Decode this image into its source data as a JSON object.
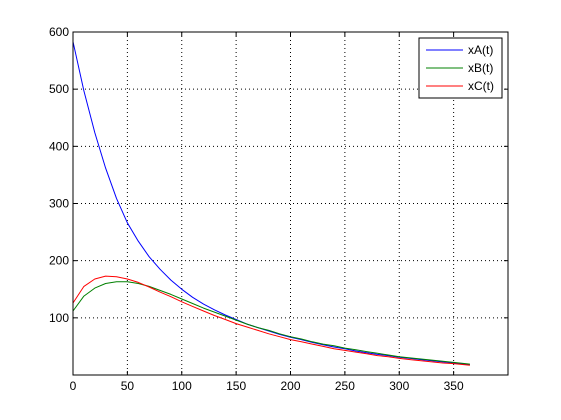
{
  "chart_data": {
    "type": "line",
    "title": "",
    "xlabel": "",
    "ylabel": "",
    "xlim": [
      0,
      400
    ],
    "ylim": [
      0,
      600
    ],
    "xticks": [
      0,
      50,
      100,
      150,
      200,
      250,
      300,
      350
    ],
    "yticks": [
      100,
      200,
      300,
      400,
      500,
      600
    ],
    "grid": true,
    "legend_position": "top-right",
    "series": [
      {
        "name": "xA(t)",
        "color": "#0000ff",
        "x": [
          0,
          10,
          20,
          30,
          40,
          50,
          60,
          70,
          80,
          90,
          100,
          110,
          120,
          130,
          140,
          150,
          160,
          170,
          180,
          190,
          200,
          210,
          220,
          230,
          240,
          250,
          260,
          270,
          280,
          290,
          300,
          310,
          320,
          330,
          340,
          350,
          365
        ],
        "y": [
          583,
          497,
          424,
          362,
          309,
          266,
          234,
          207,
          185,
          166,
          150,
          136,
          124,
          114,
          105,
          97,
          89,
          83,
          77,
          71,
          66,
          62,
          57,
          53,
          49,
          46,
          42,
          39,
          36,
          34,
          31,
          29,
          27,
          25,
          23,
          21,
          18
        ]
      },
      {
        "name": "xB(t)",
        "color": "#008000",
        "x": [
          0,
          10,
          20,
          30,
          40,
          50,
          60,
          70,
          80,
          90,
          100,
          110,
          120,
          130,
          140,
          150,
          160,
          170,
          180,
          190,
          200,
          210,
          220,
          230,
          240,
          250,
          260,
          270,
          280,
          290,
          300,
          310,
          320,
          330,
          340,
          350,
          365
        ],
        "y": [
          112,
          138,
          152,
          160,
          163,
          163,
          160,
          155,
          148,
          141,
          133,
          125,
          117,
          110,
          103,
          96,
          89,
          83,
          78,
          72,
          67,
          63,
          58,
          54,
          51,
          47,
          44,
          41,
          38,
          35,
          32,
          30,
          28,
          26,
          24,
          22,
          19
        ]
      },
      {
        "name": "xC(t)",
        "color": "#ff0000",
        "x": [
          0,
          10,
          20,
          30,
          40,
          50,
          60,
          70,
          80,
          90,
          100,
          110,
          120,
          130,
          140,
          150,
          160,
          170,
          180,
          190,
          200,
          210,
          220,
          230,
          240,
          250,
          260,
          270,
          280,
          290,
          300,
          310,
          320,
          330,
          340,
          350,
          365
        ],
        "y": [
          126,
          155,
          168,
          173,
          172,
          168,
          162,
          154,
          145,
          137,
          128,
          120,
          112,
          104,
          97,
          90,
          84,
          78,
          72,
          67,
          62,
          58,
          54,
          50,
          46,
          43,
          40,
          37,
          34,
          32,
          29,
          27,
          25,
          23,
          21,
          20,
          17
        ]
      }
    ]
  }
}
